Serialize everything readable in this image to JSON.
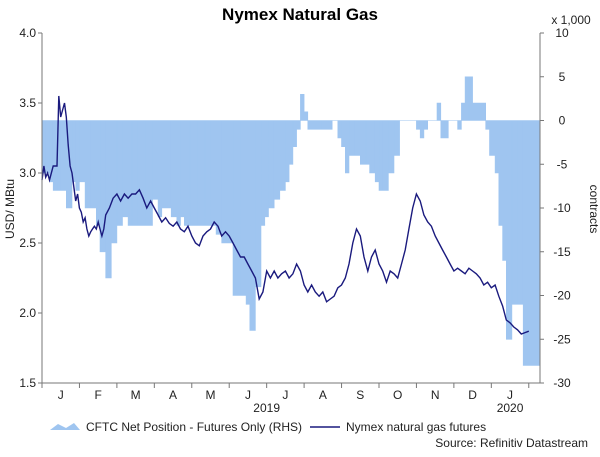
{
  "chart_data": {
    "type": "area+line",
    "title": "Nymex Natural Gas",
    "left_axis": {
      "label": "USD/ MBtu",
      "ylim": [
        1.5,
        4.0
      ],
      "ticks": [
        "1.5",
        "2.0",
        "2.5",
        "3.0",
        "3.5",
        "4.0"
      ]
    },
    "right_axis": {
      "label": "contracts",
      "unit": "x 1,000",
      "ylim": [
        -30,
        10
      ],
      "ticks": [
        "-30",
        "-25",
        "-20",
        "-15",
        "-10",
        "-5",
        "0",
        "5",
        "10"
      ]
    },
    "x_axis": {
      "months": [
        "J",
        "F",
        "M",
        "A",
        "M",
        "J",
        "J",
        "A",
        "S",
        "O",
        "N",
        "D",
        "J"
      ],
      "years": [
        "2019",
        "2020"
      ],
      "range": [
        0,
        13.3
      ]
    },
    "series": [
      {
        "name": "CFTC Net Position - Futures Only (RHS)",
        "axis": "right",
        "color": "#9fc5f0",
        "points": [
          [
            0.0,
            -6
          ],
          [
            0.1,
            -6
          ],
          [
            0.2,
            -7
          ],
          [
            0.3,
            -8
          ],
          [
            0.4,
            -8
          ],
          [
            0.5,
            -8
          ],
          [
            0.65,
            -10
          ],
          [
            0.8,
            -7
          ],
          [
            0.9,
            -8
          ],
          [
            1.0,
            -7
          ],
          [
            1.15,
            -10
          ],
          [
            1.3,
            -10
          ],
          [
            1.45,
            -12
          ],
          [
            1.55,
            -15
          ],
          [
            1.7,
            -18
          ],
          [
            1.85,
            -14
          ],
          [
            2.0,
            -12
          ],
          [
            2.15,
            -11
          ],
          [
            2.3,
            -12
          ],
          [
            2.4,
            -12
          ],
          [
            2.55,
            -12
          ],
          [
            2.75,
            -12
          ],
          [
            2.95,
            -9
          ],
          [
            3.1,
            -11
          ],
          [
            3.2,
            -10
          ],
          [
            3.3,
            -10
          ],
          [
            3.45,
            -11
          ],
          [
            3.6,
            -12
          ],
          [
            3.7,
            -11
          ],
          [
            3.8,
            -12
          ],
          [
            3.95,
            -12
          ],
          [
            4.15,
            -12
          ],
          [
            4.35,
            -12
          ],
          [
            4.5,
            -12
          ],
          [
            4.65,
            -13
          ],
          [
            4.8,
            -14
          ],
          [
            4.95,
            -14
          ],
          [
            5.1,
            -20
          ],
          [
            5.3,
            -20
          ],
          [
            5.45,
            -21
          ],
          [
            5.55,
            -24
          ],
          [
            5.7,
            -19
          ],
          [
            5.85,
            -12
          ],
          [
            5.95,
            -11
          ],
          [
            6.05,
            -10
          ],
          [
            6.2,
            -9
          ],
          [
            6.35,
            -8
          ],
          [
            6.5,
            -7
          ],
          [
            6.6,
            -5
          ],
          [
            6.7,
            -3
          ],
          [
            6.8,
            -1
          ],
          [
            6.9,
            3
          ],
          [
            7.0,
            1
          ],
          [
            7.1,
            -1
          ],
          [
            7.2,
            -1
          ],
          [
            7.3,
            -1
          ],
          [
            7.45,
            -1
          ],
          [
            7.6,
            -1
          ],
          [
            7.75,
            0
          ],
          [
            7.9,
            -2
          ],
          [
            8.0,
            -3
          ],
          [
            8.1,
            -6
          ],
          [
            8.2,
            -4
          ],
          [
            8.35,
            -4
          ],
          [
            8.5,
            -5
          ],
          [
            8.65,
            -5
          ],
          [
            8.75,
            -6
          ],
          [
            8.9,
            -7
          ],
          [
            9.0,
            -8
          ],
          [
            9.1,
            -8
          ],
          [
            9.25,
            -6
          ],
          [
            9.4,
            -4
          ],
          [
            9.55,
            0
          ],
          [
            9.7,
            0
          ],
          [
            9.85,
            0
          ],
          [
            10.0,
            -1
          ],
          [
            10.1,
            -2
          ],
          [
            10.2,
            -1
          ],
          [
            10.3,
            0
          ],
          [
            10.45,
            0
          ],
          [
            10.55,
            2
          ],
          [
            10.65,
            -2
          ],
          [
            10.75,
            -2
          ],
          [
            10.85,
            0
          ],
          [
            10.95,
            0
          ],
          [
            11.1,
            -1
          ],
          [
            11.2,
            2
          ],
          [
            11.3,
            5
          ],
          [
            11.4,
            5
          ],
          [
            11.5,
            2
          ],
          [
            11.6,
            2
          ],
          [
            11.7,
            2
          ],
          [
            11.85,
            -1
          ],
          [
            11.95,
            -4
          ],
          [
            12.1,
            -6
          ],
          [
            12.2,
            -12
          ],
          [
            12.3,
            -16
          ],
          [
            12.4,
            -25
          ],
          [
            12.55,
            -21
          ],
          [
            12.7,
            -21
          ],
          [
            12.85,
            -28
          ],
          [
            13.0,
            -28
          ]
        ]
      },
      {
        "name": "Nymex natural gas futures",
        "axis": "left",
        "color": "#1a1a7e",
        "points": [
          [
            0.0,
            2.95
          ],
          [
            0.05,
            3.05
          ],
          [
            0.1,
            2.97
          ],
          [
            0.15,
            3.0
          ],
          [
            0.2,
            2.95
          ],
          [
            0.3,
            3.05
          ],
          [
            0.4,
            3.05
          ],
          [
            0.45,
            3.55
          ],
          [
            0.5,
            3.4
          ],
          [
            0.55,
            3.45
          ],
          [
            0.6,
            3.5
          ],
          [
            0.65,
            3.4
          ],
          [
            0.7,
            3.2
          ],
          [
            0.75,
            3.05
          ],
          [
            0.8,
            3.0
          ],
          [
            0.9,
            2.8
          ],
          [
            0.95,
            2.85
          ],
          [
            1.0,
            2.75
          ],
          [
            1.05,
            2.72
          ],
          [
            1.1,
            2.65
          ],
          [
            1.15,
            2.68
          ],
          [
            1.2,
            2.6
          ],
          [
            1.25,
            2.55
          ],
          [
            1.3,
            2.58
          ],
          [
            1.35,
            2.6
          ],
          [
            1.4,
            2.62
          ],
          [
            1.45,
            2.6
          ],
          [
            1.5,
            2.65
          ],
          [
            1.55,
            2.6
          ],
          [
            1.6,
            2.55
          ],
          [
            1.65,
            2.6
          ],
          [
            1.7,
            2.7
          ],
          [
            1.8,
            2.75
          ],
          [
            1.9,
            2.82
          ],
          [
            2.0,
            2.85
          ],
          [
            2.1,
            2.8
          ],
          [
            2.2,
            2.85
          ],
          [
            2.3,
            2.82
          ],
          [
            2.4,
            2.85
          ],
          [
            2.5,
            2.85
          ],
          [
            2.6,
            2.88
          ],
          [
            2.7,
            2.82
          ],
          [
            2.8,
            2.75
          ],
          [
            2.9,
            2.8
          ],
          [
            3.0,
            2.75
          ],
          [
            3.1,
            2.7
          ],
          [
            3.2,
            2.65
          ],
          [
            3.3,
            2.68
          ],
          [
            3.4,
            2.64
          ],
          [
            3.5,
            2.62
          ],
          [
            3.6,
            2.65
          ],
          [
            3.7,
            2.6
          ],
          [
            3.8,
            2.58
          ],
          [
            3.9,
            2.62
          ],
          [
            4.0,
            2.55
          ],
          [
            4.1,
            2.5
          ],
          [
            4.2,
            2.48
          ],
          [
            4.3,
            2.55
          ],
          [
            4.4,
            2.58
          ],
          [
            4.5,
            2.6
          ],
          [
            4.6,
            2.65
          ],
          [
            4.7,
            2.62
          ],
          [
            4.8,
            2.55
          ],
          [
            4.9,
            2.58
          ],
          [
            5.0,
            2.55
          ],
          [
            5.1,
            2.5
          ],
          [
            5.2,
            2.45
          ],
          [
            5.3,
            2.4
          ],
          [
            5.4,
            2.4
          ],
          [
            5.5,
            2.35
          ],
          [
            5.6,
            2.3
          ],
          [
            5.7,
            2.25
          ],
          [
            5.8,
            2.1
          ],
          [
            5.9,
            2.15
          ],
          [
            6.0,
            2.3
          ],
          [
            6.1,
            2.25
          ],
          [
            6.2,
            2.3
          ],
          [
            6.3,
            2.25
          ],
          [
            6.4,
            2.28
          ],
          [
            6.5,
            2.3
          ],
          [
            6.6,
            2.25
          ],
          [
            6.7,
            2.28
          ],
          [
            6.8,
            2.35
          ],
          [
            6.9,
            2.3
          ],
          [
            7.0,
            2.2
          ],
          [
            7.1,
            2.15
          ],
          [
            7.2,
            2.2
          ],
          [
            7.3,
            2.15
          ],
          [
            7.4,
            2.12
          ],
          [
            7.5,
            2.15
          ],
          [
            7.6,
            2.08
          ],
          [
            7.7,
            2.1
          ],
          [
            7.8,
            2.12
          ],
          [
            7.9,
            2.18
          ],
          [
            8.0,
            2.2
          ],
          [
            8.1,
            2.25
          ],
          [
            8.2,
            2.35
          ],
          [
            8.3,
            2.5
          ],
          [
            8.4,
            2.6
          ],
          [
            8.5,
            2.55
          ],
          [
            8.6,
            2.4
          ],
          [
            8.7,
            2.3
          ],
          [
            8.8,
            2.4
          ],
          [
            8.9,
            2.45
          ],
          [
            9.0,
            2.35
          ],
          [
            9.1,
            2.3
          ],
          [
            9.2,
            2.22
          ],
          [
            9.3,
            2.3
          ],
          [
            9.4,
            2.28
          ],
          [
            9.5,
            2.25
          ],
          [
            9.6,
            2.35
          ],
          [
            9.7,
            2.45
          ],
          [
            9.8,
            2.6
          ],
          [
            9.9,
            2.75
          ],
          [
            10.0,
            2.85
          ],
          [
            10.1,
            2.8
          ],
          [
            10.2,
            2.7
          ],
          [
            10.3,
            2.65
          ],
          [
            10.4,
            2.62
          ],
          [
            10.5,
            2.55
          ],
          [
            10.6,
            2.5
          ],
          [
            10.7,
            2.45
          ],
          [
            10.8,
            2.4
          ],
          [
            10.9,
            2.35
          ],
          [
            11.0,
            2.3
          ],
          [
            11.1,
            2.32
          ],
          [
            11.2,
            2.3
          ],
          [
            11.3,
            2.28
          ],
          [
            11.4,
            2.32
          ],
          [
            11.5,
            2.3
          ],
          [
            11.6,
            2.28
          ],
          [
            11.7,
            2.25
          ],
          [
            11.8,
            2.2
          ],
          [
            11.9,
            2.22
          ],
          [
            12.0,
            2.18
          ],
          [
            12.1,
            2.2
          ],
          [
            12.2,
            2.12
          ],
          [
            12.3,
            2.05
          ],
          [
            12.4,
            1.95
          ],
          [
            12.5,
            1.93
          ],
          [
            12.6,
            1.9
          ],
          [
            12.7,
            1.88
          ],
          [
            12.8,
            1.85
          ],
          [
            12.9,
            1.86
          ],
          [
            13.0,
            1.87
          ]
        ]
      }
    ],
    "legend": [
      {
        "label": "CFTC Net Position - Futures Only (RHS)",
        "color": "#9fc5f0",
        "shape": "area"
      },
      {
        "label": "Nymex natural gas futures",
        "color": "#1a1a7e",
        "shape": "line"
      }
    ],
    "source": "Source: Refinitiv Datastream"
  }
}
